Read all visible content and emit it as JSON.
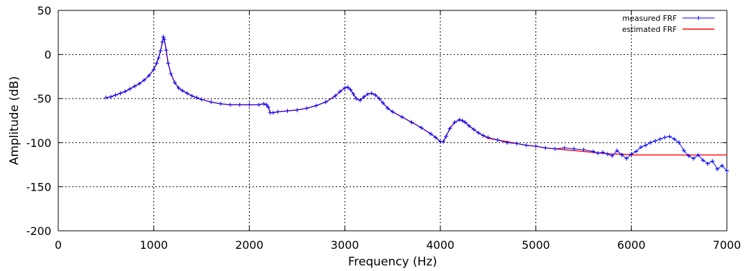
{
  "chart_data": {
    "type": "line",
    "title": "",
    "xlabel": "Frequency (Hz)",
    "ylabel": "Amplitude (dB)",
    "xlim": [
      0,
      7000
    ],
    "ylim": [
      -200,
      50
    ],
    "xticks": [
      "0",
      "1000",
      "2000",
      "3000",
      "4000",
      "5000",
      "6000",
      "7000"
    ],
    "yticks": [
      "-200",
      "-150",
      "-100",
      "-50",
      "0",
      "50"
    ],
    "grid": true,
    "legend": "top-right",
    "series": [
      {
        "name": "measured FRF",
        "style": "line-plus-markers",
        "color": "#0000ff",
        "x": [
          500,
          550,
          600,
          650,
          700,
          750,
          800,
          850,
          900,
          950,
          1000,
          1030,
          1050,
          1070,
          1090,
          1100,
          1110,
          1130,
          1150,
          1180,
          1220,
          1260,
          1300,
          1350,
          1400,
          1450,
          1500,
          1600,
          1700,
          1800,
          1900,
          2000,
          2100,
          2150,
          2180,
          2200,
          2220,
          2250,
          2300,
          2400,
          2500,
          2600,
          2700,
          2800,
          2900,
          2950,
          3000,
          3030,
          3060,
          3090,
          3120,
          3160,
          3200,
          3240,
          3280,
          3320,
          3360,
          3400,
          3450,
          3500,
          3600,
          3700,
          3800,
          3900,
          3950,
          4000,
          4030,
          4060,
          4100,
          4150,
          4200,
          4230,
          4260,
          4300,
          4350,
          4400,
          4450,
          4500,
          4600,
          4700,
          4800,
          4900,
          5000,
          5100,
          5200,
          5300,
          5400,
          5500,
          5600,
          5650,
          5700,
          5750,
          5800,
          5850,
          5900,
          5950,
          6000,
          6050,
          6100,
          6150,
          6200,
          6250,
          6300,
          6350,
          6400,
          6450,
          6500,
          6550,
          6600,
          6650,
          6700,
          6750,
          6800,
          6850,
          6900,
          6950,
          7000
        ],
        "y": [
          -49,
          -48,
          -46,
          -44,
          -42,
          -39,
          -36,
          -33,
          -29,
          -24,
          -17,
          -10,
          -4,
          4,
          14,
          20,
          17,
          5,
          -10,
          -22,
          -32,
          -38,
          -41,
          -44,
          -47,
          -49,
          -51,
          -54,
          -56,
          -57,
          -57,
          -57,
          -57,
          -56,
          -57,
          -60,
          -66,
          -66,
          -65,
          -64,
          -63,
          -61,
          -58,
          -54,
          -47,
          -42,
          -38,
          -37,
          -40,
          -45,
          -50,
          -52,
          -48,
          -45,
          -44,
          -46,
          -50,
          -55,
          -61,
          -65,
          -71,
          -77,
          -83,
          -90,
          -94,
          -99,
          -99,
          -93,
          -84,
          -77,
          -74,
          -75,
          -77,
          -81,
          -85,
          -89,
          -92,
          -94,
          -97,
          -100,
          -101,
          -103,
          -104,
          -106,
          -107,
          -106,
          -107,
          -108,
          -110,
          -112,
          -111,
          -113,
          -115,
          -109,
          -114,
          -118,
          -113,
          -110,
          -105,
          -103,
          -100,
          -98,
          -96,
          -94,
          -93,
          -96,
          -100,
          -109,
          -115,
          -118,
          -114,
          -120,
          -124,
          -121,
          -130,
          -126,
          -132
        ]
      },
      {
        "name": "estimated FRF",
        "style": "line",
        "color": "#ff0000",
        "x": [
          500,
          550,
          600,
          650,
          700,
          750,
          800,
          850,
          900,
          950,
          1000,
          1030,
          1050,
          1070,
          1090,
          1100,
          1110,
          1130,
          1150,
          1180,
          1220,
          1260,
          1300,
          1350,
          1400,
          1450,
          1500,
          1600,
          1700,
          1800,
          1900,
          2000,
          2100,
          2150,
          2180,
          2200,
          2220,
          2250,
          2300,
          2400,
          2500,
          2600,
          2700,
          2800,
          2900,
          2950,
          3000,
          3030,
          3060,
          3090,
          3120,
          3160,
          3200,
          3240,
          3280,
          3320,
          3360,
          3400,
          3450,
          3500,
          3600,
          3700,
          3800,
          3900,
          3950,
          4000,
          4030,
          4060,
          4100,
          4150,
          4200,
          4230,
          4260,
          4300,
          4350,
          4400,
          4450,
          4500,
          4600,
          4700,
          4800,
          4900,
          5000,
          5100,
          5200,
          5300,
          5400,
          5500,
          5600,
          5700,
          5800,
          5900,
          6000,
          6200,
          6400,
          6600,
          6800,
          7000
        ],
        "y": [
          -49,
          -48,
          -46,
          -44,
          -42,
          -39,
          -36,
          -33,
          -29,
          -24,
          -17,
          -10,
          -4,
          4,
          14,
          20,
          17,
          5,
          -10,
          -22,
          -32,
          -38,
          -41,
          -44,
          -47,
          -49,
          -51,
          -54,
          -56,
          -57,
          -57,
          -57,
          -57,
          -56,
          -57,
          -60,
          -66,
          -66,
          -65,
          -64,
          -63,
          -61,
          -58,
          -54,
          -47,
          -42,
          -38,
          -37,
          -40,
          -45,
          -50,
          -52,
          -48,
          -45,
          -44,
          -46,
          -50,
          -55,
          -61,
          -65,
          -71,
          -77,
          -83,
          -90,
          -94,
          -99,
          -99,
          -93,
          -84,
          -77,
          -74,
          -75,
          -77,
          -81,
          -85,
          -89,
          -92,
          -95,
          -97,
          -99,
          -101,
          -103,
          -104,
          -106,
          -107,
          -108,
          -109,
          -110,
          -111,
          -112,
          -113,
          -113,
          -114,
          -114,
          -114,
          -114,
          -114,
          -114
        ]
      }
    ]
  }
}
